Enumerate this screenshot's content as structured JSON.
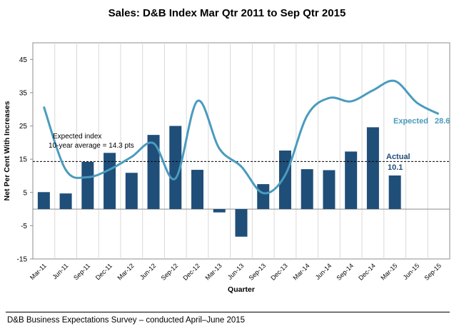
{
  "chart_data": {
    "type": "bar+line",
    "title": "Sales: D&B Index  Mar Qtr 2011 to Sep Qtr 2015",
    "xlabel": "Quarter",
    "ylabel": "Net Per Cent With Increases",
    "ylim": [
      -15,
      50
    ],
    "yticks": [
      -15,
      -5,
      5,
      15,
      25,
      35,
      45
    ],
    "grid": "vertical",
    "categories": [
      "Mar-11",
      "Jun-11",
      "Sep-11",
      "Dec-11",
      "Mar-12",
      "Jun-12",
      "Sep-12",
      "Dec-12",
      "Mar-13",
      "Jun-13",
      "Sep-13",
      "Dec-13",
      "Mar-14",
      "Jun-14",
      "Sep-14",
      "Dec-14",
      "Mar-15",
      "Jun-15",
      "Sep-15"
    ],
    "series": [
      {
        "name": "Actual",
        "type": "bar",
        "color": "#1F4E79",
        "values": [
          5.1,
          4.7,
          14.2,
          16.9,
          10.9,
          22.3,
          25.0,
          11.8,
          -1.0,
          -8.3,
          7.5,
          17.6,
          12.0,
          11.7,
          17.3,
          24.6,
          10.1,
          null,
          null
        ]
      },
      {
        "name": "Expected",
        "type": "line",
        "color": "#4A9BBE",
        "values": [
          30.8,
          11.8,
          9.6,
          11.9,
          15.7,
          19.8,
          9.2,
          32.5,
          18.2,
          12.8,
          4.8,
          10.2,
          28.1,
          33.4,
          32.4,
          35.7,
          38.5,
          32.0,
          28.6
        ]
      }
    ],
    "annotations": {
      "expected_index_line1": "Expected index",
      "expected_index_line2": "10-year average = 14.3 pts",
      "average_value": 14.3,
      "expected_label": "Expected",
      "expected_value": "28.6",
      "actual_label": "Actual",
      "actual_value": "10.1"
    }
  },
  "footer": {
    "text": "D&B Business Expectations Survey – conducted April–June 2015"
  }
}
